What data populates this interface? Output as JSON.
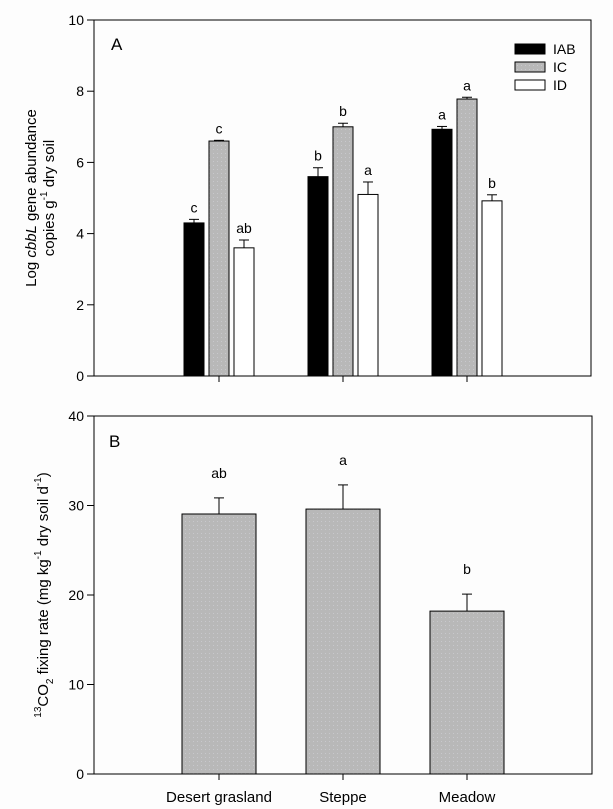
{
  "chart_data": [
    {
      "type": "bar",
      "panel_label": "A",
      "title": "",
      "xlabel": "",
      "ylabel_parts": {
        "prefix": "Log ",
        "italic": "cbbL",
        "suffix": " gene abundance",
        "line2_pre": "copies g",
        "line2_sup": "-1",
        "line2_post": " dry soil"
      },
      "ylim": [
        0,
        10
      ],
      "yticks": [
        0,
        2,
        4,
        6,
        8,
        10
      ],
      "ytick_labels": [
        "0",
        "2",
        "4",
        "6",
        "8",
        "10"
      ],
      "categories": [
        "Desert grasland",
        "Steppe",
        "Meadow"
      ],
      "legend_position": "top-right",
      "grid": false,
      "series": [
        {
          "name": "IAB",
          "color": "#000000",
          "values": [
            4.3,
            5.6,
            6.93
          ],
          "errors": [
            0.1,
            0.25,
            0.08
          ],
          "letters": [
            "c",
            "b",
            "a"
          ]
        },
        {
          "name": "IC",
          "color": "#b8b8b8",
          "values": [
            6.6,
            7.0,
            7.78
          ],
          "errors": [
            0.02,
            0.1,
            0.05
          ],
          "letters": [
            "c",
            "b",
            "a"
          ]
        },
        {
          "name": "ID",
          "color": "#ffffff",
          "values": [
            3.6,
            5.1,
            4.92
          ],
          "errors": [
            0.22,
            0.35,
            0.17
          ],
          "letters": [
            "ab",
            "a",
            "b"
          ]
        }
      ]
    },
    {
      "type": "bar",
      "panel_label": "B",
      "title": "",
      "xlabel": "",
      "ylabel_parts": {
        "sup1": "13",
        "main1": "CO",
        "sub": "2",
        "main2": " fixing rate (mg kg",
        "sup2": "-1",
        "main3": " dry soil d",
        "sup3": "-1",
        "main4": ")"
      },
      "ylim": [
        0,
        40
      ],
      "yticks": [
        0,
        10,
        20,
        30,
        40
      ],
      "ytick_labels": [
        "0",
        "10",
        "20",
        "30",
        "40"
      ],
      "categories": [
        "Desert grasland",
        "Steppe",
        "Meadow"
      ],
      "grid": false,
      "series": [
        {
          "name": "13CO2 fixing rate",
          "color": "#b8b8b8",
          "values": [
            29.05,
            29.6,
            18.2
          ],
          "errors": [
            1.8,
            2.7,
            1.9
          ],
          "letters": [
            "ab",
            "a",
            "b"
          ]
        }
      ]
    }
  ]
}
